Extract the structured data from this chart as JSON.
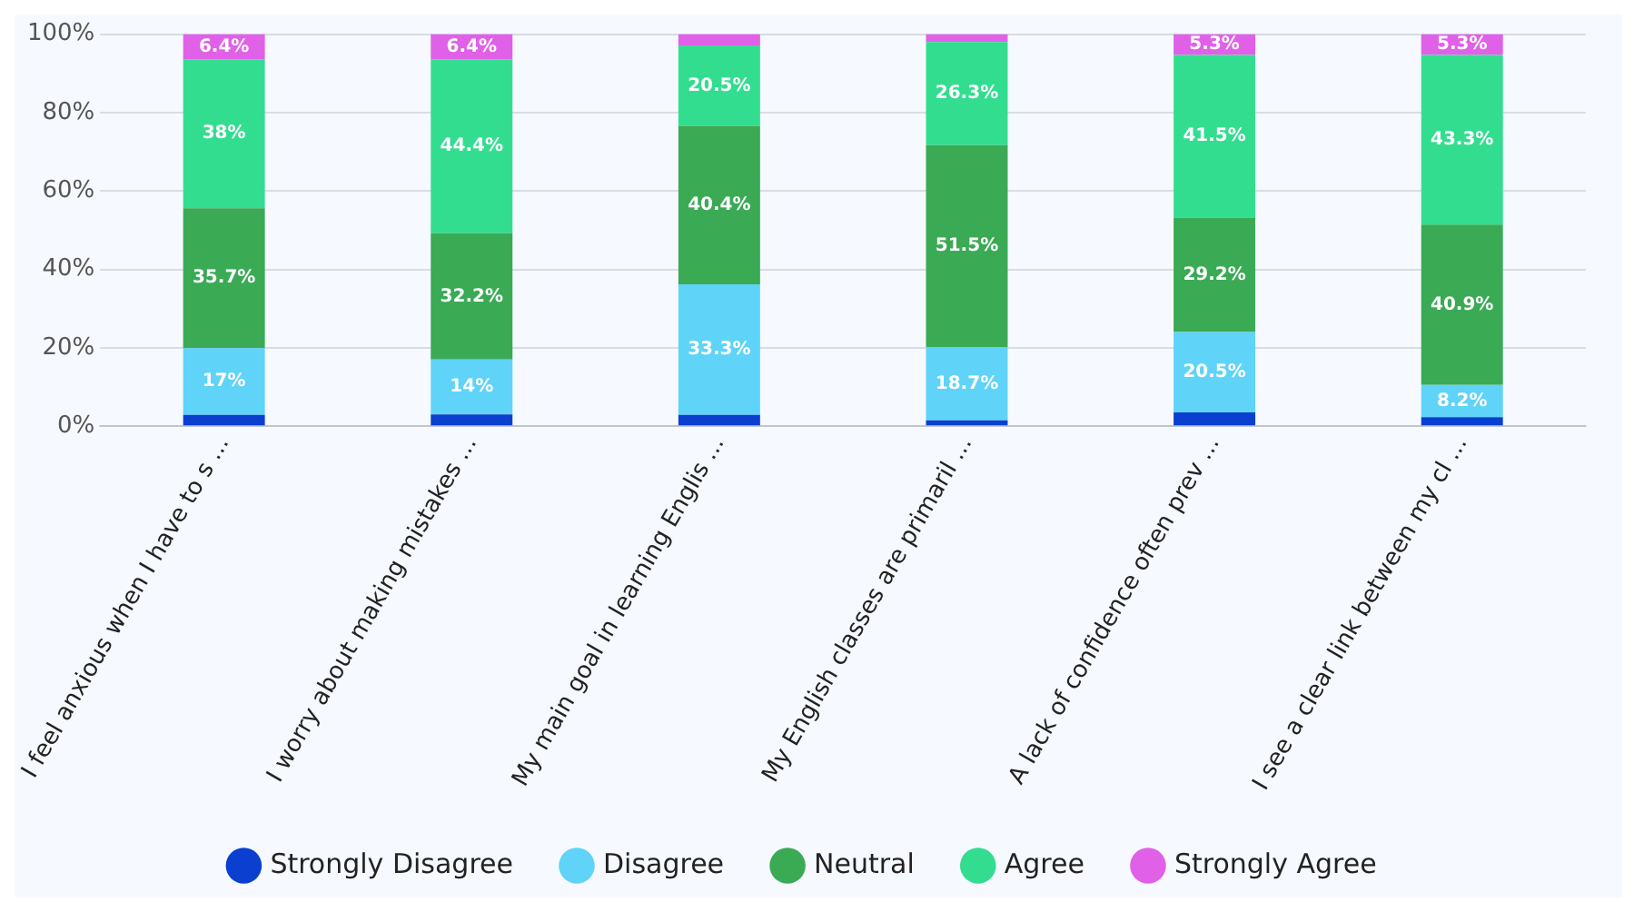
{
  "chart_data": {
    "type": "bar",
    "stacked": true,
    "categories": [
      "I feel anxious when I have to s ...",
      "I worry about making mistakes ...",
      "My main goal in learning Englis ...",
      "My English classes are primaril ...",
      "A lack of confidence often prev ...",
      "I see a clear link between my cl ..."
    ],
    "series": [
      {
        "name": "Strongly Disagree",
        "color": "#0a3fd0",
        "values": [
          2.9,
          3,
          2.9,
          1.5,
          3.5,
          2.3
        ],
        "value_labels": [
          null,
          null,
          null,
          null,
          null,
          null
        ]
      },
      {
        "name": "Disagree",
        "color": "#5fd3f8",
        "values": [
          17,
          14,
          33.3,
          18.7,
          20.5,
          8.2
        ],
        "value_labels": [
          "17%",
          "14%",
          "33.3%",
          "18.7%",
          "20.5%",
          "8.2%"
        ]
      },
      {
        "name": "Neutral",
        "color": "#3aaa55",
        "values": [
          35.7,
          32.2,
          40.4,
          51.5,
          29.2,
          40.9
        ],
        "value_labels": [
          "35.7%",
          "32.2%",
          "40.4%",
          "51.5%",
          "29.2%",
          "40.9%"
        ]
      },
      {
        "name": "Agree",
        "color": "#33dd90",
        "values": [
          38,
          44.4,
          20.5,
          26.3,
          41.5,
          43.3
        ],
        "value_labels": [
          "38%",
          "44.4%",
          "20.5%",
          "26.3%",
          "41.5%",
          "43.3%"
        ]
      },
      {
        "name": "Strongly Agree",
        "color": "#e060e8",
        "values": [
          6.4,
          6.4,
          2.9,
          2,
          5.3,
          5.3
        ],
        "value_labels": [
          "6.4%",
          "6.4%",
          null,
          null,
          "5.3%",
          "5.3%"
        ]
      }
    ],
    "ylim": [
      0,
      100
    ],
    "yticks": [
      {
        "value": 0,
        "label": "0%"
      },
      {
        "value": 20,
        "label": "20%"
      },
      {
        "value": 40,
        "label": "40%"
      },
      {
        "value": 60,
        "label": "60%"
      },
      {
        "value": 80,
        "label": "80%"
      },
      {
        "value": 100,
        "label": "100%"
      }
    ],
    "grid": "y",
    "legend": "bottom",
    "marker": "circle"
  }
}
